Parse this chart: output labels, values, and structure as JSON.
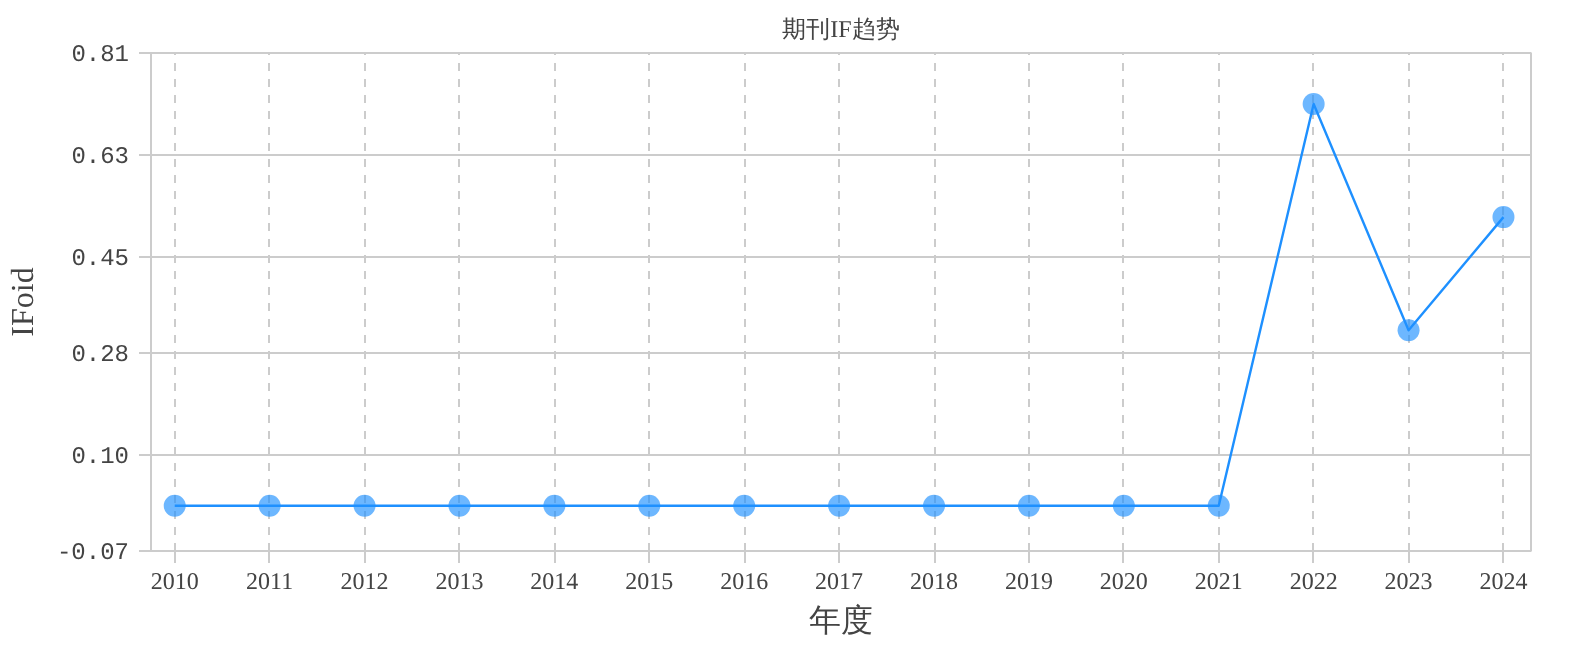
{
  "chart_data": {
    "type": "line",
    "title": "期刊IF趋势",
    "xlabel": "年度",
    "ylabel": "IFoid",
    "categories": [
      "2010",
      "2011",
      "2012",
      "2013",
      "2014",
      "2015",
      "2016",
      "2017",
      "2018",
      "2019",
      "2020",
      "2021",
      "2022",
      "2023",
      "2024"
    ],
    "series": [
      {
        "color": "#1e90ff",
        "values": [
          0.01,
          0.01,
          0.01,
          0.01,
          0.01,
          0.01,
          0.01,
          0.01,
          0.01,
          0.01,
          0.01,
          0.01,
          0.72,
          0.32,
          0.52
        ]
      }
    ],
    "ylim": [
      -0.07,
      0.81
    ],
    "yticks": [
      -0.07,
      {
        "value": 0.1,
        "label": "0.10"
      },
      0.28,
      0.45,
      0.63,
      0.81
    ],
    "grid": true,
    "marker": "circle",
    "line_style": "solid"
  }
}
